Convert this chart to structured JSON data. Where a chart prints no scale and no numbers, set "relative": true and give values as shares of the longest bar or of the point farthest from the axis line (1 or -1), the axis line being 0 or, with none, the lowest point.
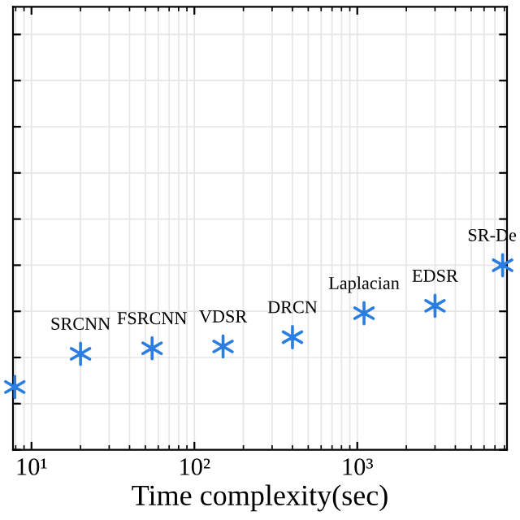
{
  "chart_data": {
    "type": "scatter",
    "xlabel": "Time complexity(sec)",
    "log": "x",
    "relative": true,
    "x": [
      7.9,
      20,
      55,
      150,
      400,
      1100,
      3000,
      7800
    ],
    "series": [
      {
        "color": "#2a7de1",
        "values": [
          0.34,
          0.52,
          0.55,
          0.56,
          0.61,
          0.74,
          0.78,
          1
        ]
      }
    ],
    "xlim": [
      7.7,
      8300
    ],
    "xticks": [
      {
        "value": 10,
        "label": "10¹"
      },
      {
        "value": 100,
        "label": "10²"
      },
      {
        "value": 1000,
        "label": "10³"
      }
    ],
    "grid": true,
    "marker": "cross",
    "tick_labels": "x",
    "annotations": [
      {
        "text": "SRCNN",
        "x": 20,
        "y": 0.52
      },
      {
        "text": "FSRCNN",
        "x": 55,
        "y": 0.55
      },
      {
        "text": "VDSR",
        "x": 150,
        "y": 0.56
      },
      {
        "text": "DRCN",
        "x": 400,
        "y": 0.61
      },
      {
        "text": "Laplacian",
        "x": 1100,
        "y": 0.74
      },
      {
        "text": "EDSR",
        "x": 3000,
        "y": 0.78
      },
      {
        "text": "SR-De",
        "x": 7800,
        "y": 1
      }
    ]
  }
}
